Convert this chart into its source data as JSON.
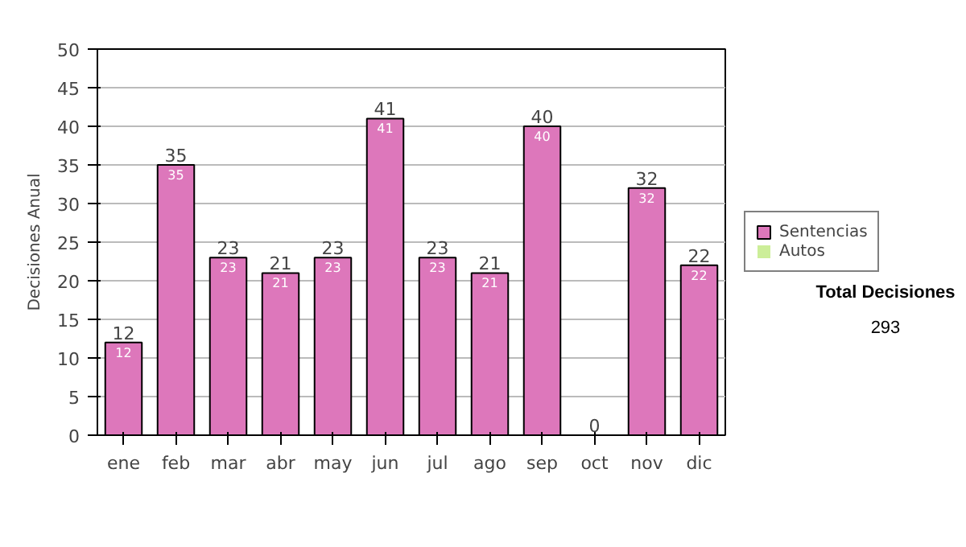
{
  "chart_data": {
    "type": "bar",
    "stacked": true,
    "ylabel": "Decisiones Anual",
    "categories": [
      "ene",
      "feb",
      "mar",
      "abr",
      "may",
      "jun",
      "jul",
      "ago",
      "sep",
      "oct",
      "nov",
      "dic"
    ],
    "series": [
      {
        "name": "Sentencias",
        "color": "#dd77bb",
        "values": [
          12,
          35,
          23,
          21,
          23,
          41,
          23,
          21,
          40,
          0,
          32,
          22
        ],
        "value_labels": [
          "12",
          "35",
          "23",
          "21",
          "23",
          "41",
          "23",
          "21",
          "40",
          null,
          "32",
          "22"
        ]
      },
      {
        "name": "Autos",
        "color": "#ccee99",
        "values": [
          0,
          0,
          0,
          0,
          0,
          0,
          0,
          0,
          0,
          0,
          0,
          0
        ]
      }
    ],
    "totals": [
      "12",
      "35",
      "23",
      "21",
      "23",
      "41",
      "23",
      "21",
      "40",
      "0",
      "32",
      "22"
    ],
    "ylim": [
      0,
      50
    ],
    "yticks": [
      0,
      5,
      10,
      15,
      20,
      25,
      30,
      35,
      40,
      45,
      50
    ],
    "grid": "y",
    "legend": "right",
    "annotations": [
      "Total Decisiones",
      "293"
    ]
  }
}
